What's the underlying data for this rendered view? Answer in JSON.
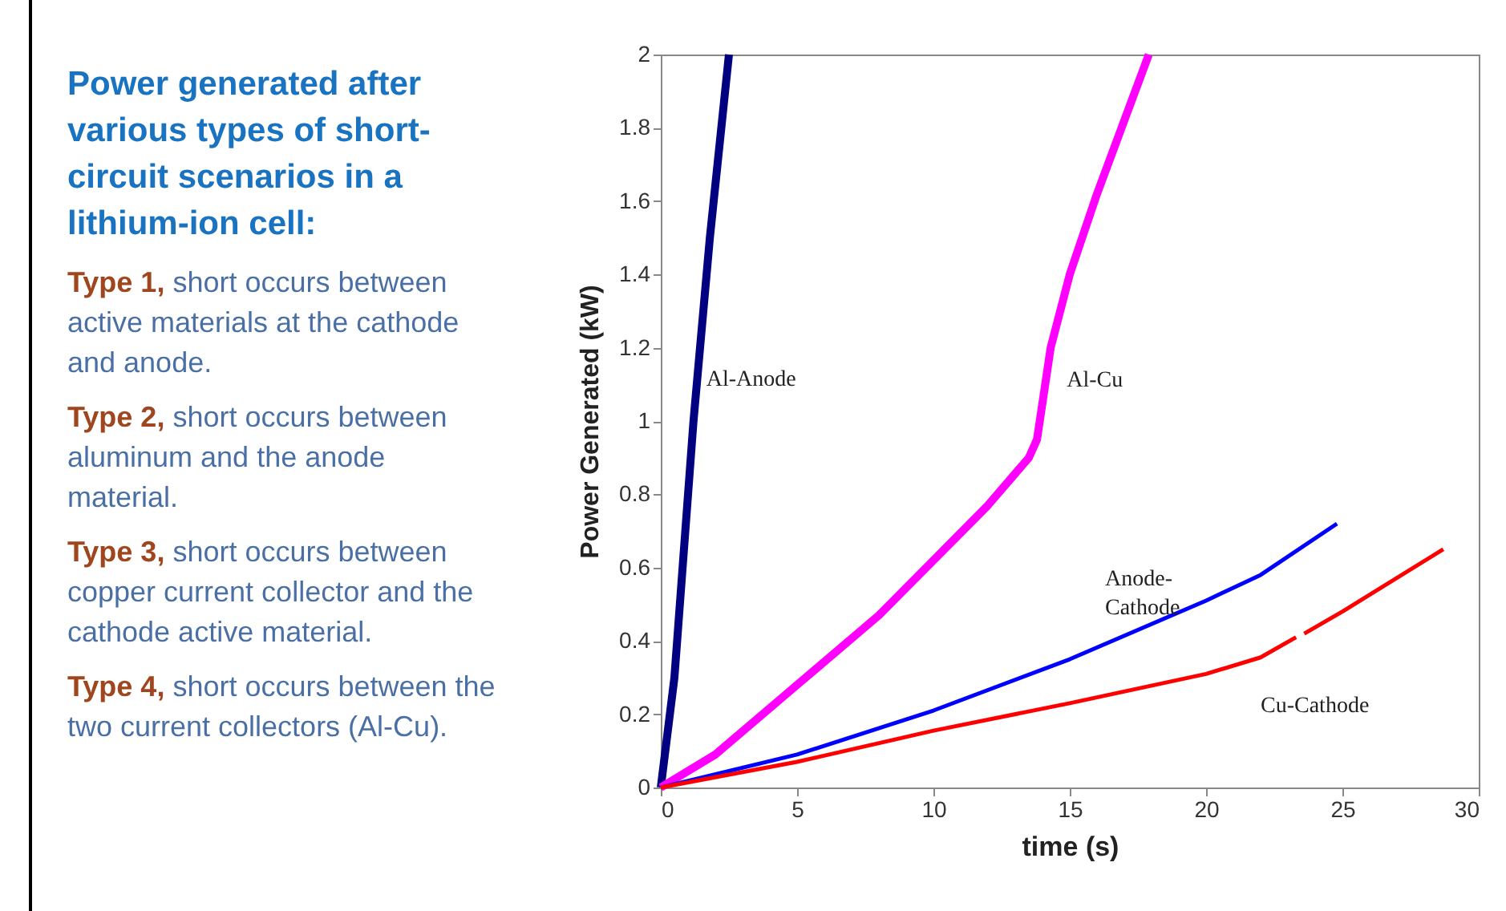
{
  "chart_data": {
    "type": "line",
    "title": "Power generated after various types of short-circuit scenarios in a lithium-ion cell:",
    "annotations": [
      "Type 1, short occurs between active materials at the cathode and anode.",
      "Type 2, short occurs between aluminum and the anode material.",
      "Type 3, short occurs between copper current collector and the cathode active material.",
      "Type 4, short occurs between the two current collectors (Al-Cu)."
    ],
    "xlabel": "time (s)",
    "ylabel": "Power Generated (kW)",
    "xlim": [
      0,
      30
    ],
    "xticks": [
      0,
      5,
      10,
      15,
      20,
      25,
      30
    ],
    "ylim": [
      0,
      2
    ],
    "yticks": [
      0,
      0.2,
      0.4,
      0.6,
      0.8,
      1,
      1.2,
      1.4,
      1.6,
      1.8,
      2
    ],
    "grid": false,
    "marker": "none",
    "line_style": "solid",
    "series": [
      {
        "name": "Al-Anode",
        "color": "#000080",
        "x": [
          0,
          0.5,
          1.2,
          1.8,
          2.5
        ],
        "values": [
          0,
          0.3,
          1.0,
          1.5,
          2.0
        ]
      },
      {
        "name": "Al-Cu",
        "color": "#ff00ff",
        "x": [
          0,
          2,
          5,
          8,
          10,
          12,
          13.5,
          13.8,
          14.0,
          14.3,
          15,
          16,
          17,
          17.9
        ],
        "values": [
          0,
          0.09,
          0.28,
          0.47,
          0.62,
          0.77,
          0.9,
          0.95,
          1.05,
          1.2,
          1.4,
          1.62,
          1.82,
          2.0
        ]
      },
      {
        "name": "Anode-Cathode",
        "color": "#0000ff",
        "x": [
          0,
          5,
          10,
          15,
          20,
          22,
          24.8
        ],
        "values": [
          0,
          0.09,
          0.21,
          0.35,
          0.51,
          0.58,
          0.72
        ]
      },
      {
        "name": "Cu-Cathode",
        "color": "#ff0000",
        "x": [
          0,
          5,
          10,
          15,
          20,
          22,
          23.3,
          23.45,
          23.6,
          25,
          28.7
        ],
        "values": [
          0,
          0.07,
          0.155,
          0.23,
          0.31,
          0.355,
          0.41,
          null,
          0.42,
          0.48,
          0.65
        ]
      }
    ]
  }
}
